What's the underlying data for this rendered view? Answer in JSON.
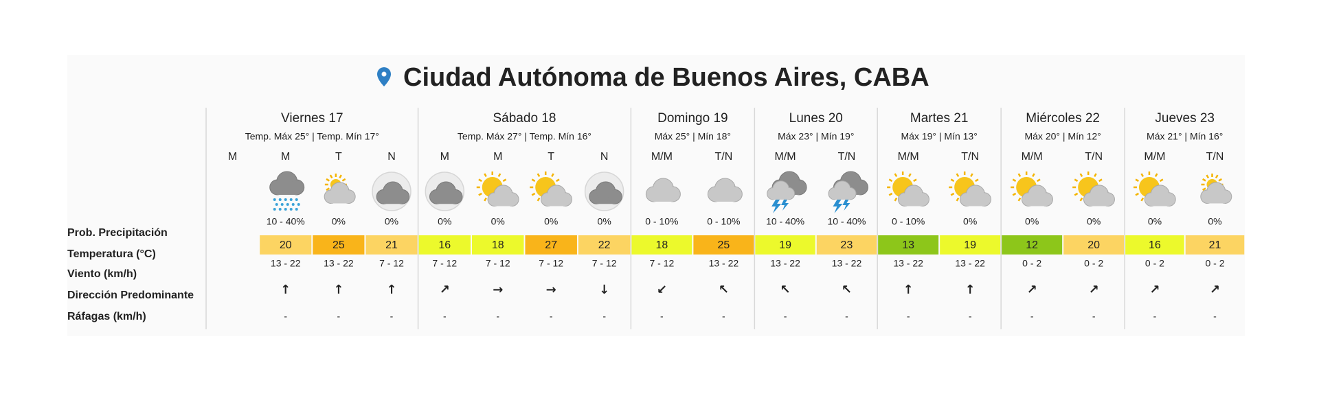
{
  "title": "Ciudad Autónoma de Buenos Aires, CABA",
  "row_labels": [
    "Prob. Precipitación",
    "Temperatura (°C)",
    "Viento (km/h)",
    "Dirección Predominante",
    "Ráfagas (km/h)"
  ],
  "days": [
    {
      "name": "Viernes 17",
      "temps": "Temp. Máx 25° | Temp. Mín 17°",
      "periods": [
        {
          "label": "M"
        },
        {
          "label": "M",
          "icon": "rain",
          "precip": "10 - 40%",
          "temp": 20,
          "color": "#fcd462",
          "wind": "13 - 22",
          "dir": "↑",
          "gust": "-"
        },
        {
          "label": "T",
          "icon": "cloud-sun",
          "precip": "0%",
          "temp": 25,
          "color": "#f9b41a",
          "wind": "13 - 22",
          "dir": "↑",
          "gust": "-"
        },
        {
          "label": "N",
          "icon": "cloud-moon",
          "precip": "0%",
          "temp": 21,
          "color": "#fcd462",
          "wind": "7 - 12",
          "dir": "↑",
          "gust": "-"
        }
      ]
    },
    {
      "name": "Sábado 18",
      "temps": "Temp. Máx 27° | Temp. Mín 16°",
      "periods": [
        {
          "label": "M",
          "icon": "cloud-moon",
          "precip": "0%",
          "temp": 16,
          "color": "#ecf92c",
          "wind": "7 - 12",
          "dir": "↗",
          "gust": "-"
        },
        {
          "label": "M",
          "icon": "sun-cloud",
          "precip": "0%",
          "temp": 18,
          "color": "#ecf92c",
          "wind": "7 - 12",
          "dir": "→",
          "gust": "-"
        },
        {
          "label": "T",
          "icon": "sun-cloud",
          "precip": "0%",
          "temp": 27,
          "color": "#f9b41a",
          "wind": "7 - 12",
          "dir": "→",
          "gust": "-"
        },
        {
          "label": "N",
          "icon": "cloud-moon",
          "precip": "0%",
          "temp": 22,
          "color": "#fcd462",
          "wind": "7 - 12",
          "dir": "↓",
          "gust": "-"
        }
      ]
    },
    {
      "name": "Domingo 19",
      "temps": "Máx 25° | Mín 18°",
      "periods": [
        {
          "label": "M/M",
          "icon": "cloud",
          "precip": "0 - 10%",
          "temp": 18,
          "color": "#ecf92c",
          "wind": "7 - 12",
          "dir": "↙",
          "gust": "-"
        },
        {
          "label": "T/N",
          "icon": "cloud",
          "precip": "0 - 10%",
          "temp": 25,
          "color": "#f9b41a",
          "wind": "13 - 22",
          "dir": "↖",
          "gust": "-"
        }
      ]
    },
    {
      "name": "Lunes 20",
      "temps": "Máx 23° | Mín 19°",
      "periods": [
        {
          "label": "M/M",
          "icon": "storm",
          "precip": "10 - 40%",
          "temp": 19,
          "color": "#ecf92c",
          "wind": "13 - 22",
          "dir": "↖",
          "gust": "-"
        },
        {
          "label": "T/N",
          "icon": "storm",
          "precip": "10 - 40%",
          "temp": 23,
          "color": "#fcd462",
          "wind": "13 - 22",
          "dir": "↖",
          "gust": "-"
        }
      ]
    },
    {
      "name": "Martes 21",
      "temps": "Máx 19° | Mín 13°",
      "periods": [
        {
          "label": "M/M",
          "icon": "sun-cloud",
          "precip": "0 - 10%",
          "temp": 13,
          "color": "#8dc61a",
          "wind": "13 - 22",
          "dir": "↑",
          "gust": "-"
        },
        {
          "label": "T/N",
          "icon": "sun-cloud",
          "precip": "0%",
          "temp": 19,
          "color": "#ecf92c",
          "wind": "13 - 22",
          "dir": "↑",
          "gust": "-"
        }
      ]
    },
    {
      "name": "Miércoles 22",
      "temps": "Máx 20° | Mín 12°",
      "periods": [
        {
          "label": "M/M",
          "icon": "sun-cloud",
          "precip": "0%",
          "temp": 12,
          "color": "#8dc61a",
          "wind": "0 - 2",
          "dir": "↗",
          "gust": "-"
        },
        {
          "label": "T/N",
          "icon": "sun-cloud",
          "precip": "0%",
          "temp": 20,
          "color": "#fcd462",
          "wind": "0 - 2",
          "dir": "↗",
          "gust": "-"
        }
      ]
    },
    {
      "name": "Jueves 23",
      "temps": "Máx 21° | Mín 16°",
      "periods": [
        {
          "label": "M/M",
          "icon": "sun-cloud",
          "precip": "0%",
          "temp": 16,
          "color": "#ecf92c",
          "wind": "0 - 2",
          "dir": "↗",
          "gust": "-"
        },
        {
          "label": "T/N",
          "icon": "cloud-sun",
          "precip": "0%",
          "temp": 21,
          "color": "#fcd462",
          "wind": "0 - 2",
          "dir": "↗",
          "gust": "-"
        }
      ]
    }
  ]
}
